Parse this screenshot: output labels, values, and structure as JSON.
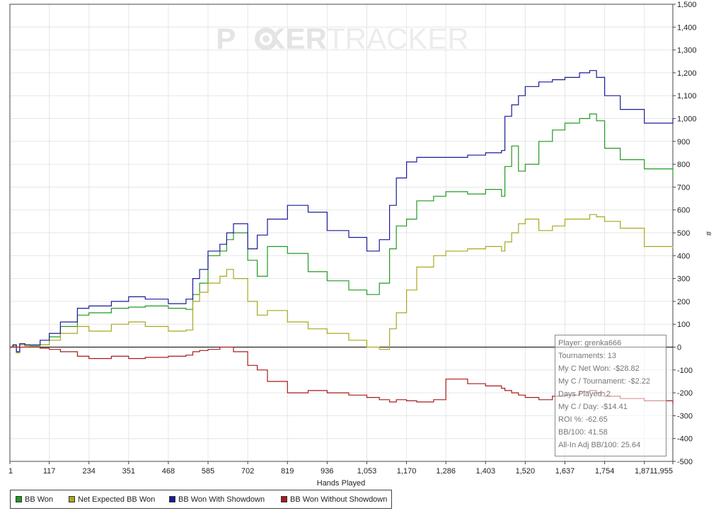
{
  "watermark": {
    "part1": "P",
    "part2": "KER",
    "part3": "TRACKER"
  },
  "stats": [
    "Player: grenka666",
    "Tournaments: 13",
    "My C Net Won: -$28.82",
    "My C / Tournament: -$2.22",
    "Days Played: 2",
    "My C / Day: -$14.41",
    "ROI %: -62.65",
    "BB/100: 41.58",
    "All-In Adj BB/100: 25.64"
  ],
  "legend": [
    {
      "label": "BB Won",
      "color": "#229922"
    },
    {
      "label": "Net Expected BB Won",
      "color": "#a8a820"
    },
    {
      "label": "BB Won With Showdown",
      "color": "#1a1a99"
    },
    {
      "label": "BB Won Without Showdown",
      "color": "#aa1a1a"
    }
  ],
  "chart_data": {
    "type": "line",
    "xlabel": "Hands Played",
    "ylabel": "#",
    "xlim": [
      1,
      1955
    ],
    "ylim": [
      -500,
      1500
    ],
    "x_ticks": [
      "1",
      "117",
      "234",
      "351",
      "468",
      "585",
      "702",
      "819",
      "936",
      "1,053",
      "1,170",
      "1,286",
      "1,403",
      "1,520",
      "1,637",
      "1,754",
      "1,871",
      "1,955"
    ],
    "y_ticks": [
      "1,500",
      "1,400",
      "1,300",
      "1,200",
      "1,100",
      "1,000",
      "900",
      "800",
      "700",
      "600",
      "500",
      "400",
      "300",
      "200",
      "100",
      "0",
      "-100",
      "-200",
      "-300",
      "-400",
      "-500"
    ],
    "grid": true,
    "legend_position": "bottom-left",
    "series": [
      {
        "name": "BB Won",
        "color": "#229922",
        "x": [
          1,
          10,
          20,
          30,
          45,
          60,
          90,
          117,
          150,
          200,
          234,
          300,
          351,
          400,
          468,
          520,
          540,
          560,
          585,
          620,
          640,
          660,
          702,
          730,
          760,
          819,
          880,
          936,
          1000,
          1053,
          1090,
          1120,
          1140,
          1170,
          1200,
          1250,
          1286,
          1350,
          1403,
          1450,
          1460,
          1480,
          1500,
          1520,
          1560,
          1600,
          1637,
          1680,
          1710,
          1730,
          1754,
          1800,
          1871,
          1955
        ],
        "y": [
          0,
          10,
          -20,
          15,
          10,
          5,
          10,
          45,
          90,
          140,
          150,
          170,
          175,
          180,
          170,
          165,
          230,
          280,
          400,
          420,
          470,
          500,
          380,
          310,
          440,
          410,
          330,
          290,
          250,
          230,
          280,
          430,
          530,
          560,
          640,
          660,
          680,
          670,
          690,
          660,
          790,
          880,
          770,
          800,
          900,
          950,
          980,
          1000,
          1020,
          990,
          870,
          820,
          780,
          750
        ]
      },
      {
        "name": "Net Expected BB Won",
        "color": "#a8a820",
        "x": [
          1,
          10,
          20,
          30,
          45,
          60,
          90,
          117,
          150,
          200,
          234,
          300,
          351,
          400,
          468,
          520,
          540,
          560,
          585,
          620,
          640,
          660,
          702,
          730,
          760,
          819,
          880,
          936,
          1000,
          1053,
          1090,
          1120,
          1140,
          1170,
          1200,
          1250,
          1286,
          1350,
          1403,
          1450,
          1460,
          1480,
          1500,
          1520,
          1560,
          1600,
          1637,
          1680,
          1710,
          1730,
          1754,
          1800,
          1871,
          1955
        ],
        "y": [
          0,
          5,
          -25,
          10,
          5,
          0,
          10,
          30,
          60,
          90,
          70,
          100,
          110,
          90,
          70,
          75,
          200,
          240,
          280,
          310,
          340,
          300,
          200,
          140,
          160,
          110,
          80,
          60,
          30,
          0,
          -10,
          80,
          150,
          250,
          350,
          400,
          420,
          430,
          440,
          420,
          460,
          500,
          540,
          560,
          510,
          530,
          560,
          560,
          580,
          570,
          550,
          520,
          440,
          435
        ]
      },
      {
        "name": "BB Won With Showdown",
        "color": "#1a1a99",
        "x": [
          1,
          10,
          20,
          30,
          45,
          60,
          90,
          117,
          150,
          200,
          234,
          300,
          351,
          400,
          468,
          520,
          540,
          560,
          585,
          620,
          640,
          660,
          702,
          730,
          760,
          819,
          880,
          936,
          1000,
          1053,
          1090,
          1120,
          1140,
          1170,
          1200,
          1250,
          1286,
          1350,
          1403,
          1450,
          1460,
          1480,
          1500,
          1520,
          1560,
          1600,
          1637,
          1680,
          1710,
          1730,
          1754,
          1800,
          1871,
          1955
        ],
        "y": [
          0,
          10,
          -20,
          15,
          10,
          10,
          30,
          60,
          110,
          170,
          180,
          200,
          220,
          210,
          190,
          210,
          300,
          340,
          420,
          450,
          500,
          540,
          430,
          490,
          560,
          620,
          590,
          510,
          480,
          420,
          470,
          620,
          740,
          810,
          830,
          830,
          830,
          840,
          850,
          860,
          1010,
          1060,
          1100,
          1140,
          1160,
          1170,
          1180,
          1200,
          1210,
          1180,
          1100,
          1040,
          980,
          1000
        ]
      },
      {
        "name": "BB Won Without Showdown",
        "color": "#aa1a1a",
        "x": [
          1,
          10,
          20,
          30,
          45,
          60,
          90,
          117,
          150,
          200,
          234,
          300,
          351,
          400,
          468,
          520,
          540,
          560,
          585,
          620,
          640,
          660,
          702,
          730,
          760,
          819,
          880,
          936,
          1000,
          1053,
          1090,
          1120,
          1140,
          1170,
          1200,
          1250,
          1286,
          1350,
          1403,
          1450,
          1460,
          1480,
          1500,
          1520,
          1560,
          1600,
          1637,
          1680,
          1710,
          1730,
          1754,
          1800,
          1871,
          1955
        ],
        "y": [
          0,
          0,
          0,
          0,
          0,
          0,
          -5,
          -10,
          -20,
          -40,
          -50,
          -40,
          -50,
          -45,
          -40,
          -35,
          -20,
          -15,
          -10,
          0,
          0,
          -20,
          -80,
          -100,
          -150,
          -200,
          -190,
          -200,
          -210,
          -220,
          -230,
          -240,
          -230,
          -235,
          -240,
          -230,
          -140,
          -160,
          -170,
          -180,
          -190,
          -200,
          -210,
          -220,
          -230,
          -215,
          -210,
          -195,
          -190,
          -200,
          -215,
          -225,
          -235,
          -250
        ]
      }
    ]
  }
}
